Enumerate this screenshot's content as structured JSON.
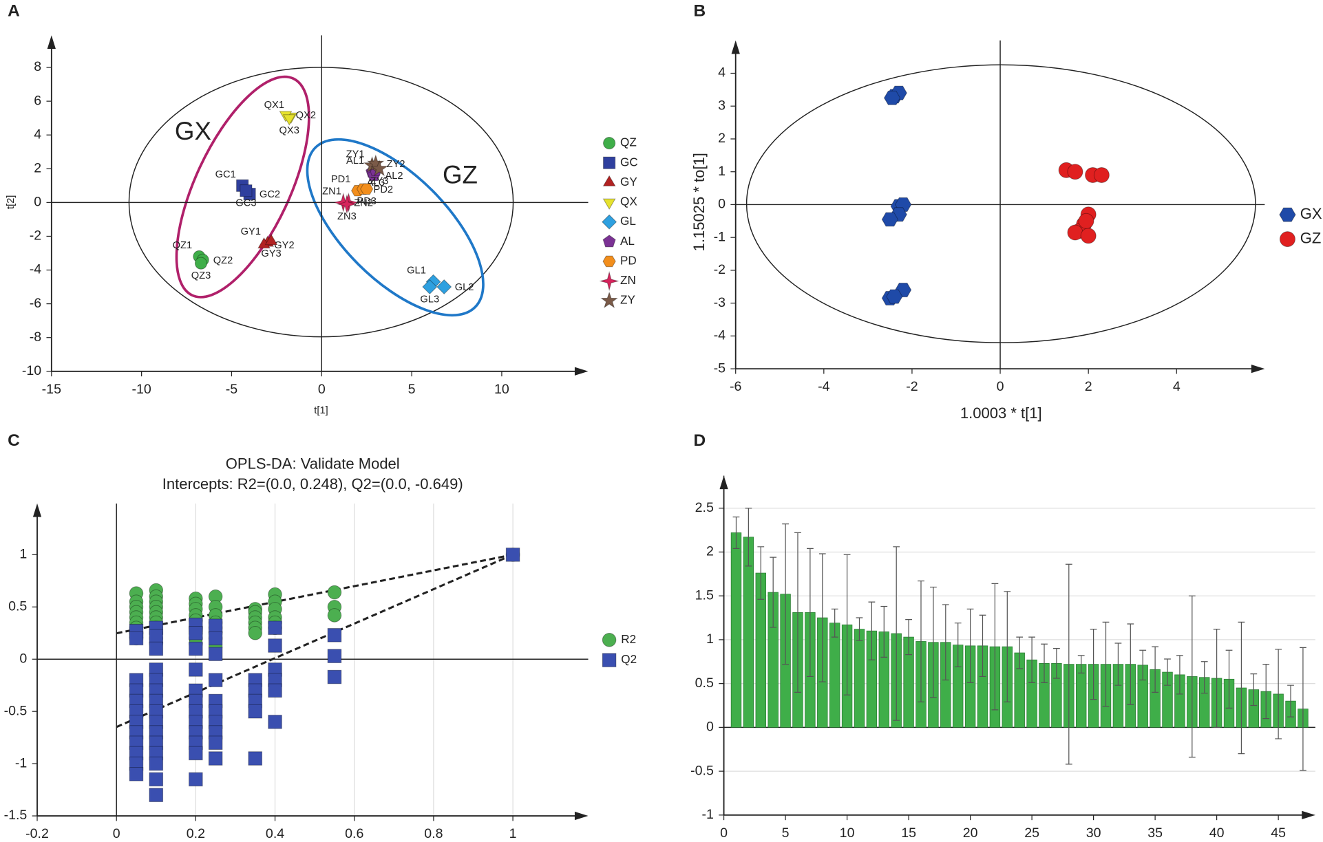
{
  "chart_data": [
    {
      "type": "scatter",
      "panel": "A",
      "xlabel": "t[1]",
      "ylabel": "t[2]",
      "xlim": [
        -15,
        14.8
      ],
      "ylim": [
        -10,
        9.9
      ],
      "xticks": [
        -15,
        -10,
        -5,
        0,
        5,
        10
      ],
      "yticks": [
        -10,
        -8,
        -6,
        -4,
        -2,
        0,
        2,
        4,
        6,
        8
      ],
      "zero_lines": true,
      "legend": "right",
      "annotations": [
        "GX",
        "GZ"
      ],
      "series": [
        {
          "name": "QZ",
          "color": "#3fae49",
          "marker": "circle",
          "labels": [
            "QZ1",
            "QZ2",
            "QZ3"
          ],
          "x": [
            -6.8,
            -6.6,
            -6.7
          ],
          "y": [
            -3.2,
            -3.4,
            -3.6
          ]
        },
        {
          "name": "GC",
          "color": "#2f3f9e",
          "marker": "square",
          "labels": [
            "GC1",
            "GC2",
            "GC3"
          ],
          "x": [
            -4.4,
            -4.0,
            -4.2
          ],
          "y": [
            1.0,
            0.5,
            0.7
          ]
        },
        {
          "name": "GY",
          "color": "#b22222",
          "marker": "triangle",
          "labels": [
            "GY1",
            "GY2",
            "GY3"
          ],
          "x": [
            -3.0,
            -3.2,
            -2.8
          ],
          "y": [
            -2.4,
            -2.5,
            -2.3
          ]
        },
        {
          "name": "QX",
          "color": "#e6e22e",
          "marker": "triangle-down",
          "labels": [
            "QX1",
            "QX2",
            "QX3"
          ],
          "x": [
            -1.7,
            -2.0,
            -1.8
          ],
          "y": [
            5.1,
            5.2,
            5.0
          ]
        },
        {
          "name": "GL",
          "color": "#2ea0e0",
          "marker": "diamond",
          "labels": [
            "GL1",
            "GL2",
            "GL3"
          ],
          "x": [
            6.2,
            6.8,
            6.0
          ],
          "y": [
            -4.7,
            -5.0,
            -5.0
          ]
        },
        {
          "name": "AL",
          "color": "#7b3294",
          "marker": "pentagon",
          "labels": [
            "AL1",
            "AL2",
            "AL3"
          ],
          "x": [
            2.8,
            2.9,
            3.0
          ],
          "y": [
            1.8,
            1.6,
            1.9
          ]
        },
        {
          "name": "PD",
          "color": "#f28e1c",
          "marker": "hexagon",
          "labels": [
            "PD1",
            "PD2",
            "PD3"
          ],
          "x": [
            2.0,
            2.3,
            2.5
          ],
          "y": [
            0.7,
            0.8,
            0.8
          ]
        },
        {
          "name": "ZN",
          "color": "#d6245c",
          "marker": "star4",
          "labels": [
            "ZN1",
            "ZN2",
            "ZN3"
          ],
          "x": [
            1.5,
            1.2,
            1.4
          ],
          "y": [
            0,
            0,
            -0.1
          ]
        },
        {
          "name": "ZY",
          "color": "#7a5a48",
          "marker": "star5",
          "labels": [
            "ZY1",
            "ZY2",
            "ZY3"
          ],
          "x": [
            2.8,
            3.0,
            3.2
          ],
          "y": [
            2.2,
            2.3,
            2.0
          ]
        }
      ]
    },
    {
      "type": "scatter",
      "panel": "B",
      "xlabel": "1.0003 * t[1]",
      "ylabel": "1.15025 * to[1]",
      "xlim": [
        -6,
        6
      ],
      "ylim": [
        -5,
        5
      ],
      "xticks": [
        -6,
        -4,
        -2,
        0,
        2,
        4
      ],
      "yticks": [
        -5,
        -4,
        -3,
        -2,
        -1,
        0,
        1,
        2,
        3,
        4
      ],
      "zero_lines": true,
      "legend": "right",
      "series": [
        {
          "name": "GX",
          "color": "#1f4aa8",
          "marker": "hexagon",
          "x": [
            -2.4,
            -2.3,
            -2.3,
            -2.2,
            -2.3,
            -2.5,
            -2.2,
            -2.5,
            -2.4,
            -2.45
          ],
          "y": [
            3.3,
            3.4,
            -0.05,
            0,
            -0.3,
            -0.45,
            -2.6,
            -2.85,
            -2.8,
            3.25
          ]
        },
        {
          "name": "GZ",
          "color": "#e02020",
          "marker": "circle",
          "x": [
            1.5,
            1.7,
            2.1,
            2.3,
            2.0,
            1.9,
            1.8,
            1.7,
            2.0,
            1.95
          ],
          "y": [
            1.05,
            1.0,
            0.9,
            0.9,
            -0.3,
            -0.6,
            -0.8,
            -0.85,
            -0.95,
            -0.5
          ]
        }
      ]
    },
    {
      "type": "scatter",
      "panel": "C",
      "title": "OPLS-DA: Validate Model",
      "subtitle": "Intercepts: R2=(0.0, 0.248), Q2=(0.0, -0.649)",
      "xlim": [
        -0.2,
        1.19
      ],
      "ylim": [
        -1.5,
        1.49
      ],
      "xticks": [
        -0.2,
        0,
        0.2,
        0.4,
        0.6,
        0.8,
        1
      ],
      "yticks": [
        -1.5,
        -1,
        -0.5,
        0,
        0.5,
        1
      ],
      "zero_lines": true,
      "grid": "x",
      "legend": "right",
      "lines": [
        {
          "x": [
            0,
            1
          ],
          "y": [
            0.248,
            1
          ]
        },
        {
          "x": [
            0,
            1
          ],
          "y": [
            -0.649,
            1
          ]
        }
      ],
      "series": [
        {
          "name": "R2",
          "color": "#4caf50",
          "marker": "circle",
          "x": [
            0.05,
            0.05,
            0.05,
            0.05,
            0.05,
            0.05,
            0.05,
            0.05,
            0.05,
            0.1,
            0.1,
            0.1,
            0.1,
            0.1,
            0.1,
            0.1,
            0.1,
            0.1,
            0.1,
            0.1,
            0.2,
            0.2,
            0.2,
            0.2,
            0.2,
            0.2,
            0.2,
            0.2,
            0.2,
            0.25,
            0.25,
            0.25,
            0.25,
            0.25,
            0.25,
            0.25,
            0.25,
            0.35,
            0.35,
            0.35,
            0.35,
            0.35,
            0.35,
            0.4,
            0.4,
            0.4,
            0.4,
            0.4,
            0.4,
            0.55,
            0.55,
            0.55,
            1
          ],
          "y": [
            0.63,
            0.55,
            0.5,
            0.45,
            0.4,
            0.35,
            0.3,
            0.25,
            0.2,
            0.66,
            0.6,
            0.55,
            0.5,
            0.45,
            0.4,
            0.35,
            0.3,
            0.25,
            0.2,
            0.15,
            0.58,
            0.53,
            0.48,
            0.42,
            0.37,
            0.3,
            0.25,
            0.2,
            0.15,
            0.6,
            0.5,
            0.42,
            0.35,
            0.3,
            0.25,
            0.2,
            0.12,
            0.48,
            0.45,
            0.4,
            0.35,
            0.3,
            0.25,
            0.62,
            0.55,
            0.48,
            0.4,
            0.35,
            0.3,
            0.64,
            0.5,
            0.42,
            1
          ]
        },
        {
          "name": "Q2",
          "color": "#3a4fb0",
          "marker": "square",
          "x": [
            0.05,
            0.05,
            0.05,
            0.05,
            0.05,
            0.05,
            0.05,
            0.05,
            0.05,
            0.05,
            0.05,
            0.05,
            0.1,
            0.1,
            0.1,
            0.1,
            0.1,
            0.1,
            0.1,
            0.1,
            0.1,
            0.1,
            0.1,
            0.1,
            0.1,
            0.1,
            0.1,
            0.2,
            0.2,
            0.2,
            0.2,
            0.2,
            0.2,
            0.2,
            0.2,
            0.2,
            0.2,
            0.2,
            0.2,
            0.25,
            0.25,
            0.25,
            0.25,
            0.25,
            0.25,
            0.25,
            0.25,
            0.25,
            0.25,
            0.35,
            0.35,
            0.35,
            0.35,
            0.35,
            0.4,
            0.4,
            0.4,
            0.4,
            0.4,
            0.4,
            0.55,
            0.55,
            0.55,
            1
          ],
          "y": [
            0.27,
            0.2,
            -0.2,
            -0.3,
            -0.4,
            -0.5,
            -0.6,
            -0.7,
            -0.8,
            -0.9,
            -1.0,
            -1.1,
            0.3,
            0.22,
            0.1,
            -0.1,
            -0.2,
            -0.3,
            -0.4,
            -0.5,
            -0.6,
            -0.7,
            -0.8,
            -0.9,
            -1.0,
            -1.15,
            -1.3,
            0.33,
            0.25,
            0.1,
            -0.1,
            -0.3,
            -0.4,
            -0.5,
            -0.6,
            -0.7,
            -0.8,
            -0.9,
            -1.15,
            0.32,
            0.2,
            0.05,
            -0.2,
            -0.4,
            -0.5,
            -0.6,
            -0.7,
            -0.8,
            -0.95,
            -0.2,
            -0.3,
            -0.4,
            -0.5,
            -0.95,
            0.3,
            0.13,
            -0.1,
            -0.2,
            -0.3,
            -0.6,
            0.23,
            0.03,
            -0.17,
            1
          ]
        }
      ]
    },
    {
      "type": "bar",
      "panel": "D",
      "color": "#3fae49",
      "xlim": [
        0,
        48
      ],
      "ylim": [
        -1,
        2.87
      ],
      "xticks": [
        0,
        5,
        10,
        15,
        20,
        25,
        30,
        35,
        40,
        45
      ],
      "yticks": [
        -1,
        -0.5,
        0,
        0.5,
        1,
        1.5,
        2,
        2.5
      ],
      "zero_lines": true,
      "grid": "y",
      "x": [
        1,
        2,
        3,
        4,
        5,
        6,
        7,
        8,
        9,
        10,
        11,
        12,
        13,
        14,
        15,
        16,
        17,
        18,
        19,
        20,
        21,
        22,
        23,
        24,
        25,
        26,
        27,
        28,
        29,
        30,
        31,
        32,
        33,
        34,
        35,
        36,
        37,
        38,
        39,
        40,
        41,
        42,
        43,
        44,
        45,
        46,
        47
      ],
      "values": [
        2.22,
        2.17,
        1.76,
        1.54,
        1.52,
        1.31,
        1.31,
        1.25,
        1.19,
        1.17,
        1.12,
        1.1,
        1.09,
        1.07,
        1.03,
        0.98,
        0.97,
        0.97,
        0.94,
        0.93,
        0.93,
        0.92,
        0.92,
        0.85,
        0.77,
        0.73,
        0.73,
        0.72,
        0.72,
        0.72,
        0.72,
        0.72,
        0.72,
        0.71,
        0.66,
        0.63,
        0.6,
        0.58,
        0.57,
        0.56,
        0.55,
        0.45,
        0.43,
        0.41,
        0.38,
        0.3,
        0.21
      ],
      "errors": [
        0.18,
        0.33,
        0.3,
        0.4,
        0.8,
        0.91,
        0.73,
        0.73,
        0.16,
        0.8,
        0.13,
        0.33,
        0.29,
        0.99,
        0.2,
        0.69,
        0.63,
        0.43,
        0.25,
        0.42,
        0.35,
        0.72,
        0.63,
        0.18,
        0.26,
        0.22,
        0.17,
        1.14,
        0.1,
        0.4,
        0.48,
        0.24,
        0.46,
        0.17,
        0.26,
        0.15,
        0.22,
        0.92,
        0.18,
        0.56,
        0.33,
        0.75,
        0.18,
        0.31,
        0.51,
        0.18,
        0.7
      ]
    }
  ]
}
